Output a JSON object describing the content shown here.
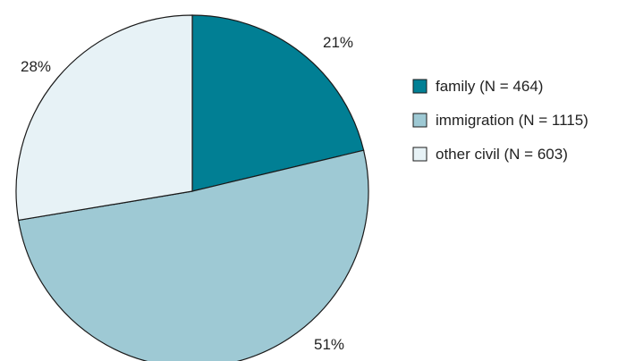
{
  "chart_data": {
    "type": "pie",
    "start_angle": "12 o'clock, clockwise",
    "legend_position": "right",
    "slices": [
      {
        "label": "family (N = 464)",
        "value": 464,
        "percent_label": "21%",
        "color": "#017f94"
      },
      {
        "label": "immigration (N = 1115)",
        "value": 1115,
        "percent_label": "51%",
        "color": "#9ec9d4"
      },
      {
        "label": "other civil (N = 603)",
        "value": 603,
        "percent_label": "28%",
        "color": "#e7f2f6"
      }
    ],
    "stroke_color": "#1a1a1a"
  }
}
